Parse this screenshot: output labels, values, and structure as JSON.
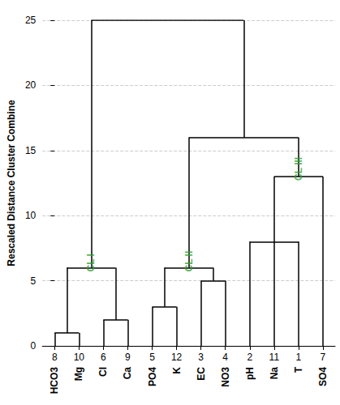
{
  "chart_data": {
    "type": "dendrogram",
    "y_label": "Rescaled Distance Cluster Combine",
    "ylim": [
      0,
      25
    ],
    "yticks": [
      0,
      5,
      10,
      15,
      20,
      25
    ],
    "grid": true,
    "color": "#000000",
    "tree": {
      "height": 25,
      "children": [
        {
          "height": 6,
          "label": "CL I",
          "color": "#2ca02c",
          "children": [
            {
              "height": 1,
              "children": [
                {
                  "number": 8,
                  "name": "HCO3"
                },
                {
                  "number": 10,
                  "name": "Mg"
                }
              ]
            },
            {
              "height": 2,
              "children": [
                {
                  "number": 6,
                  "name": "Cl"
                },
                {
                  "number": 9,
                  "name": "Ca"
                }
              ]
            }
          ]
        },
        {
          "height": 16,
          "children": [
            {
              "height": 6,
              "label": "CL II",
              "color": "#2ca02c",
              "children": [
                {
                  "height": 3,
                  "children": [
                    {
                      "number": 5,
                      "name": "PO4"
                    },
                    {
                      "number": 12,
                      "name": "K"
                    }
                  ]
                },
                {
                  "height": 5,
                  "children": [
                    {
                      "number": 3,
                      "name": "EC"
                    },
                    {
                      "number": 4,
                      "name": "NO3"
                    }
                  ]
                }
              ]
            },
            {
              "height": 13,
              "label": "CL III",
              "color": "#2ca02c",
              "children": [
                {
                  "height": 8,
                  "children": [
                    {
                      "number": 2,
                      "name": "pH"
                    },
                    {
                      "number": 11,
                      "name": "Na"
                    },
                    {
                      "number": 1,
                      "name": "T"
                    }
                  ]
                },
                {
                  "number": 7,
                  "name": "SO4"
                }
              ]
            }
          ]
        }
      ]
    }
  }
}
